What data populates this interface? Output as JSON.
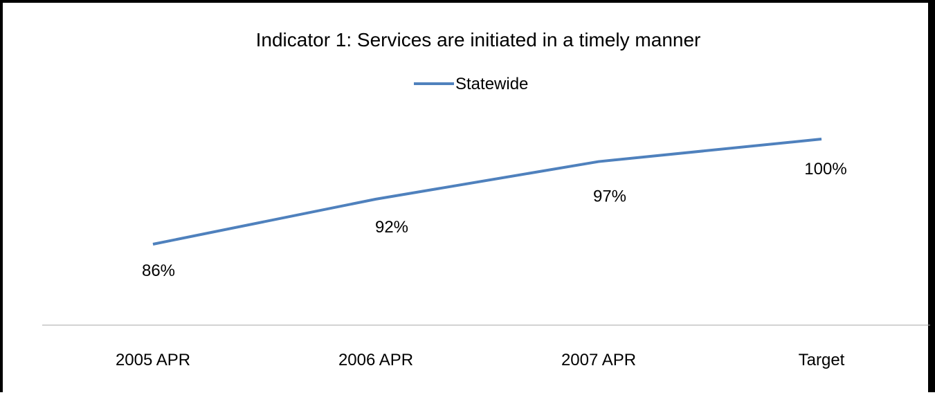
{
  "chart_data": {
    "type": "line",
    "title": "Indicator 1: Services are initiated in a timely manner",
    "categories": [
      "2005 APR",
      "2006 APR",
      "2007 APR",
      "Target"
    ],
    "series": [
      {
        "name": "Statewide",
        "values": [
          86,
          92,
          97,
          100
        ],
        "data_labels": [
          "86%",
          "92%",
          "97%",
          "100%"
        ],
        "color": "#4F81BD"
      }
    ],
    "legend_position": "top",
    "grid": false,
    "y_axis_visible": false,
    "axis_color": "#A6A6A6"
  }
}
